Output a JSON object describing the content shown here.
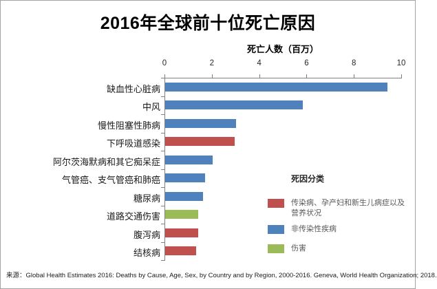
{
  "window": {
    "background": "#ffffff",
    "border_color": "#a3a3a3",
    "axis_color": "#808080"
  },
  "source_note": "来源：Global Health Estimates 2016: Deaths by Cause, Age, Sex, by Country and by Region, 2000-2016. Geneva, World Health Organization; 2018.",
  "chart_data": {
    "type": "bar",
    "orientation": "horizontal",
    "title": "2016年全球前十位死亡原因",
    "xlabel": "死亡人数（百万）",
    "ylabel": "",
    "xlim": [
      0,
      10
    ],
    "xticks": [
      0,
      2,
      4,
      6,
      8,
      10
    ],
    "grid": false,
    "categories": [
      "缺血性心脏病",
      "中风",
      "慢性阻塞性肺病",
      "下呼吸道感染",
      "阿尔茨海默病和其它痴呆症",
      "气管癌、支气管癌和肺癌",
      "糖尿病",
      "道路交通伤害",
      "腹泻病",
      "结核病"
    ],
    "values": [
      9.4,
      5.8,
      3.0,
      2.95,
      2.0,
      1.7,
      1.6,
      1.4,
      1.4,
      1.3
    ],
    "bar_groups": [
      "ncd",
      "ncd",
      "ncd",
      "cmnn",
      "ncd",
      "ncd",
      "ncd",
      "injury",
      "cmnn",
      "cmnn"
    ],
    "group_colors": {
      "cmnn": "#c0504d",
      "ncd": "#4f81bd",
      "injury": "#9bbb59"
    },
    "legend": {
      "title": "死因分类",
      "position": "right",
      "entries": [
        {
          "key": "cmnn",
          "label": "传染病、孕产妇和新生儿病症以及营养状况",
          "color": "#c0504d"
        },
        {
          "key": "ncd",
          "label": "非传染性疾病",
          "color": "#4f81bd"
        },
        {
          "key": "injury",
          "label": "伤害",
          "color": "#9bbb59"
        }
      ]
    }
  }
}
